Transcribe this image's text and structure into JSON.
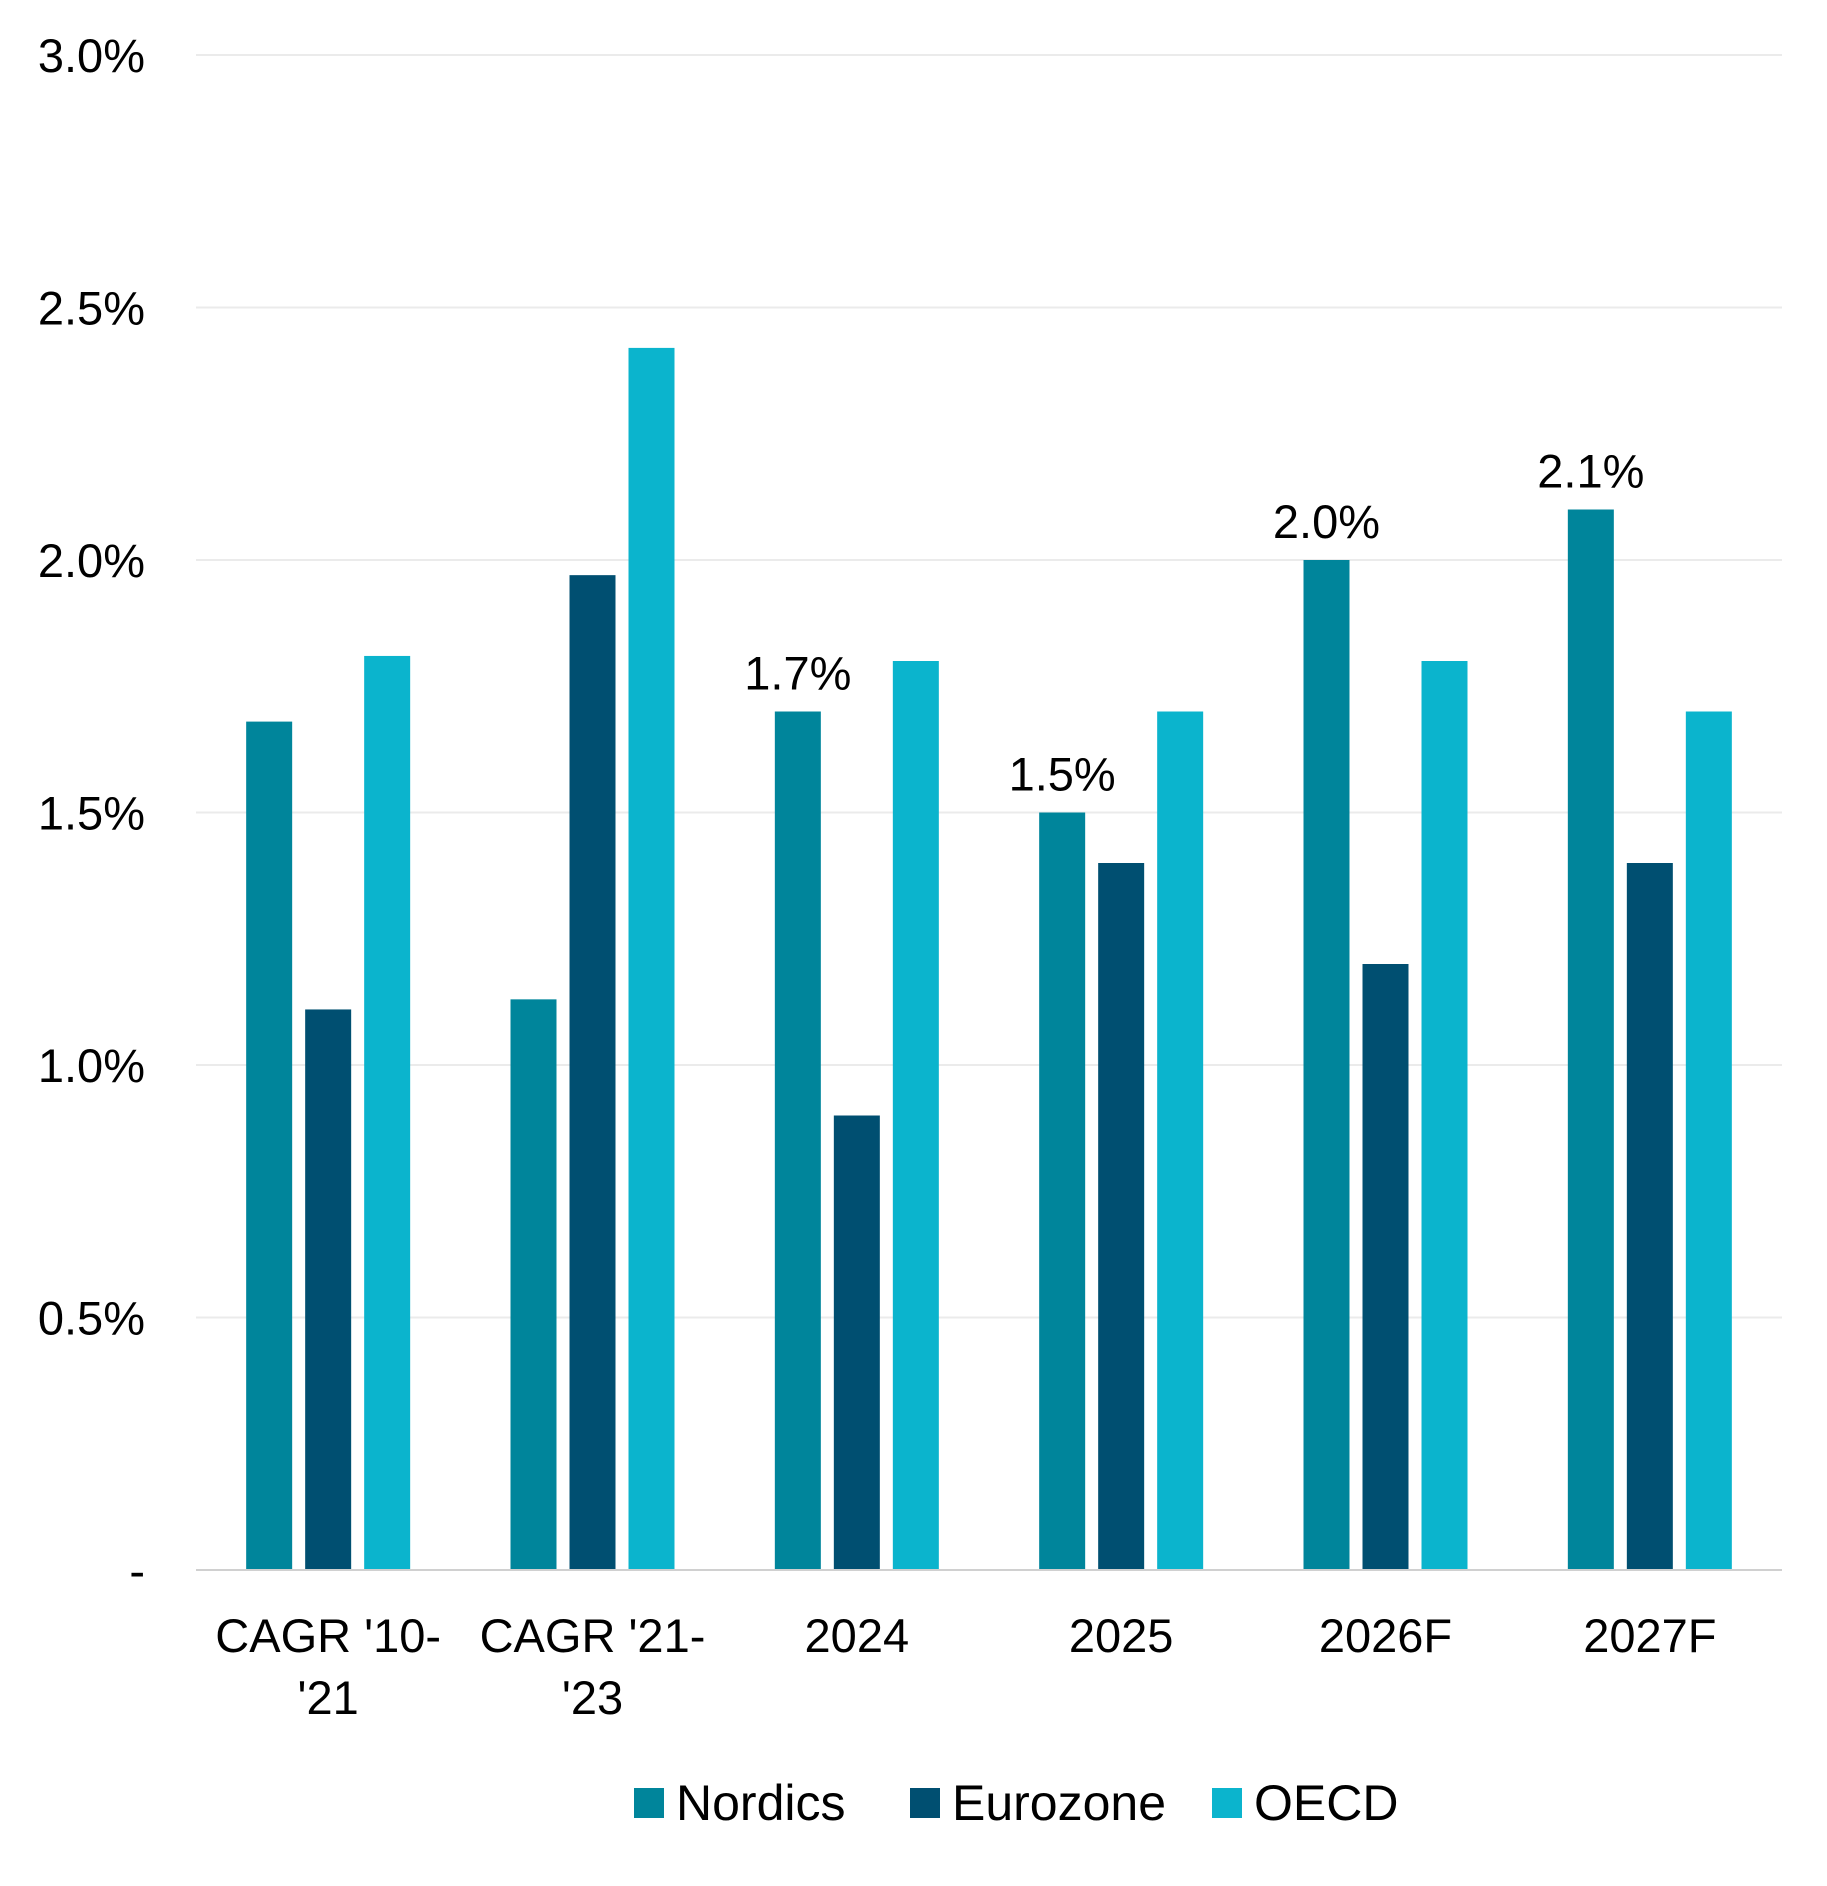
{
  "chart_data": {
    "type": "bar",
    "categories": [
      "CAGR '10-'21",
      "CAGR '21-'23",
      "2024",
      "2025",
      "2026F",
      "2027F"
    ],
    "category_lines": [
      [
        "CAGR '10-",
        "'21"
      ],
      [
        "CAGR '21-",
        "'23"
      ],
      [
        "2024"
      ],
      [
        "2025"
      ],
      [
        "2026F"
      ],
      [
        "2027F"
      ]
    ],
    "series": [
      {
        "name": "Nordics",
        "color": "#00859B",
        "values": [
          1.68,
          1.13,
          1.7,
          1.5,
          2.0,
          2.1
        ]
      },
      {
        "name": "Eurozone",
        "color": "#004F71",
        "values": [
          1.11,
          1.97,
          0.9,
          1.4,
          1.2,
          1.4
        ]
      },
      {
        "name": "OECD",
        "color": "#0BB4CD",
        "values": [
          1.81,
          2.42,
          1.8,
          1.7,
          1.8,
          1.7
        ]
      }
    ],
    "data_labels": {
      "series": "Nordics",
      "items": [
        {
          "category_index": 2,
          "text": "1.7%"
        },
        {
          "category_index": 3,
          "text": "1.5%"
        },
        {
          "category_index": 4,
          "text": "2.0%"
        },
        {
          "category_index": 5,
          "text": "2.1%"
        }
      ]
    },
    "ylim": [
      0,
      3.0
    ],
    "yticks": [
      0,
      0.5,
      1.0,
      1.5,
      2.0,
      2.5,
      3.0
    ],
    "ytick_labels": [
      "-",
      "0.5%",
      "1.0%",
      "1.5%",
      "2.0%",
      "2.5%",
      "3.0%"
    ],
    "grid": true,
    "legend_position": "bottom",
    "title": "",
    "xlabel": "",
    "ylabel": ""
  }
}
